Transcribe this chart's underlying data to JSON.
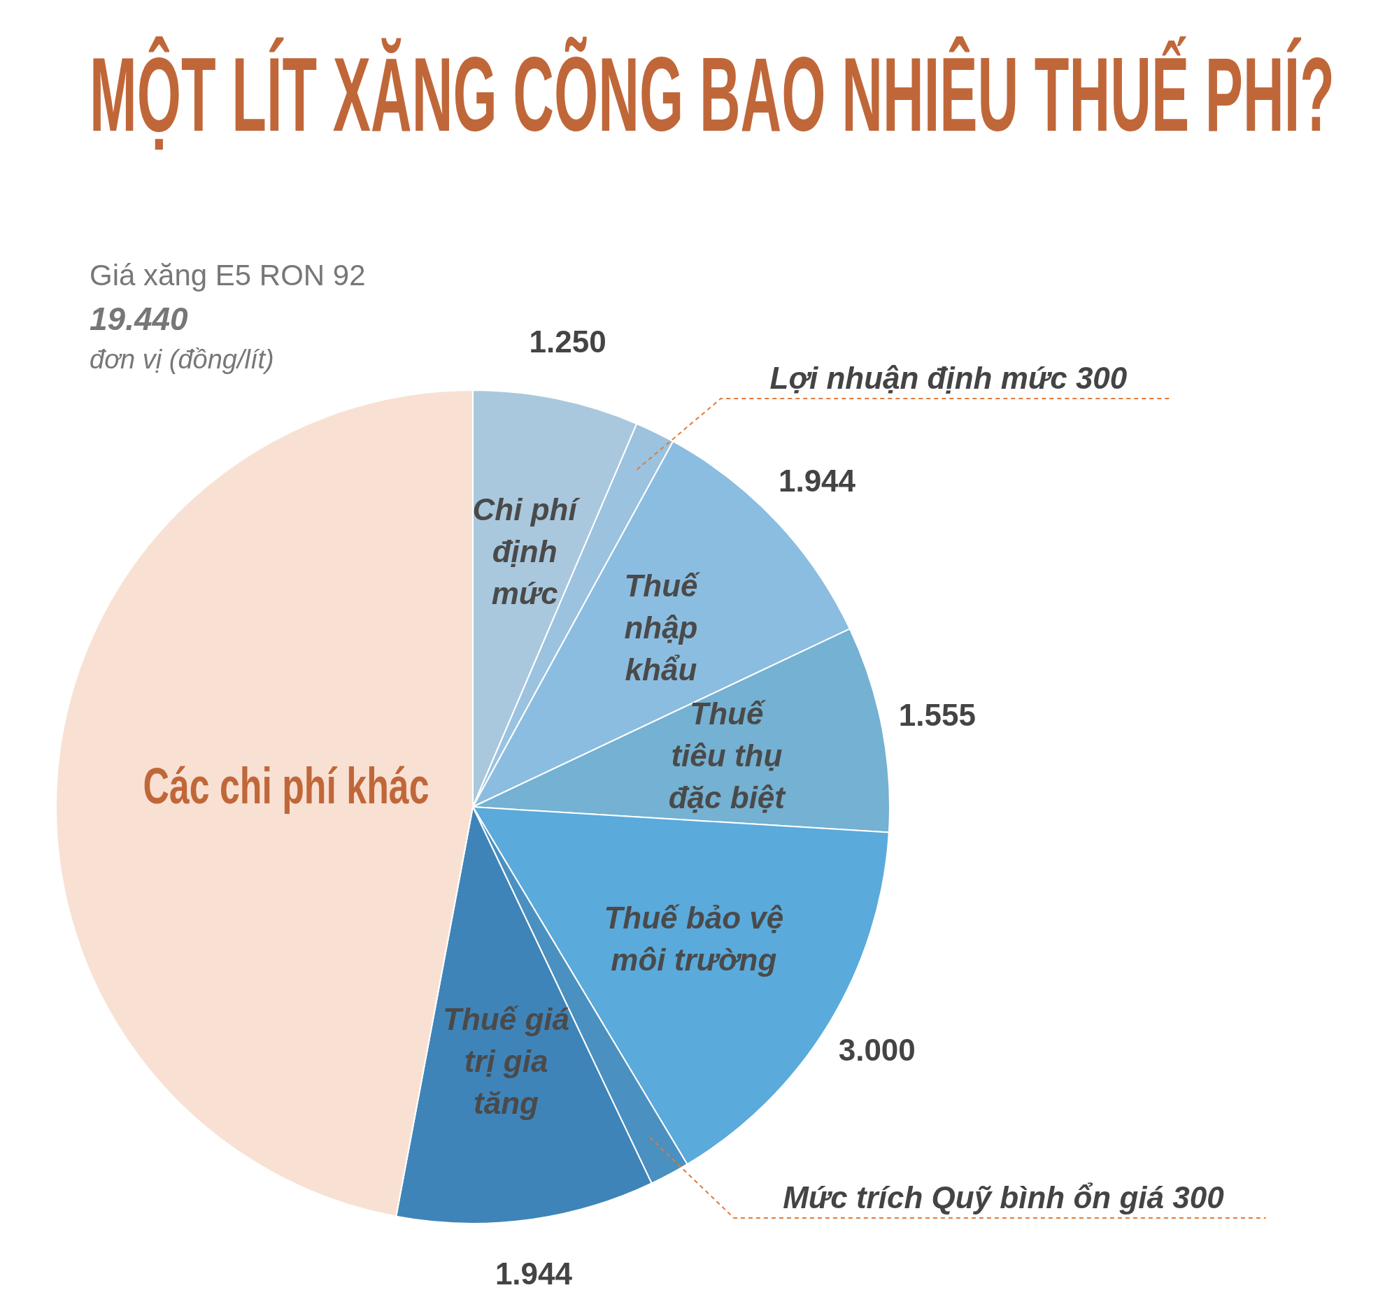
{
  "chart_data": {
    "type": "pie",
    "title": "MỘT LÍT XĂNG CÕNG BAO NHIÊU THUẾ PHÍ?",
    "subtitle": "Giá xăng E5 RON 92",
    "annotations": [
      "19.440",
      "đơn vị (đồng/lít)"
    ],
    "categories": [
      "Chi phí định mức",
      "Lợi nhuận định mức",
      "Thuế nhập khẩu",
      "Thuế tiêu thụ đặc biệt",
      "Thuế bảo vệ môi trường",
      "Mức trích Quỹ bình ổn giá",
      "Thuế giá trị gia tăng",
      "Các chi phí khác"
    ],
    "values": [
      1250,
      300,
      1944,
      1555,
      3000,
      300,
      1944,
      9147
    ],
    "value_labels": [
      "1.250",
      "300",
      "1.944",
      "1.555",
      "3.000",
      "300",
      "1.944",
      null
    ],
    "colors": [
      "#a9c8de",
      "#9bc2df",
      "#8bbde0",
      "#74b1d2",
      "#5aaadc",
      "#4a90c0",
      "#3f84b8",
      "#f8e1d3"
    ],
    "legend": false
  }
}
